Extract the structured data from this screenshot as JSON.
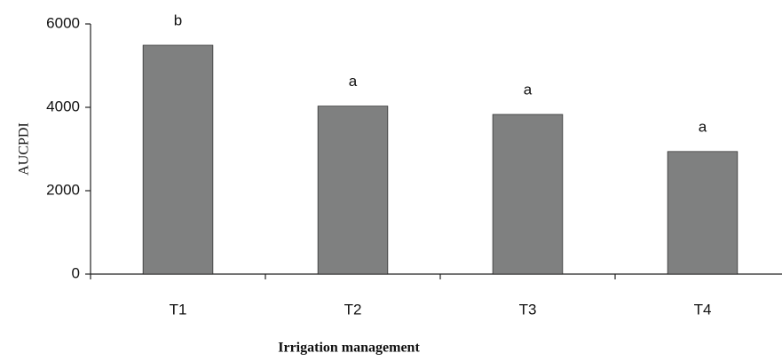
{
  "chart_data": {
    "type": "bar",
    "xlabel": "Irrigation management",
    "ylabel": "AUCPDI",
    "categories": [
      "T1",
      "T2",
      "T3",
      "T4"
    ],
    "values": [
      5490,
      4030,
      3830,
      2940
    ],
    "annotations": [
      "b",
      "a",
      "a",
      "a"
    ],
    "color": "#7f8080",
    "ylim": [
      0,
      6000
    ],
    "yticks": [
      0,
      2000,
      4000,
      6000
    ],
    "grid": false
  }
}
